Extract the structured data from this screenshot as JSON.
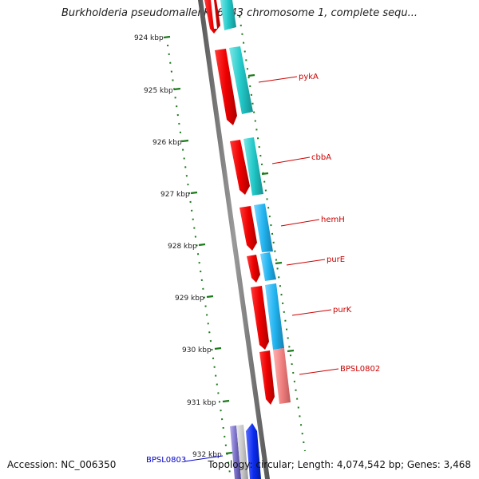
{
  "title": "Burkholderia pseudomallei K96243 chromosome 1, complete sequ...",
  "footer": {
    "accession": "Accession: NC_006350",
    "summary": "Topology: circular; Length: 4,074,542 bp; Genes: 3,468"
  },
  "ticks": [
    {
      "label": "924 kbp"
    },
    {
      "label": "925 kbp"
    },
    {
      "label": "926 kbp"
    },
    {
      "label": "927 kbp"
    },
    {
      "label": "928 kbp"
    },
    {
      "label": "929 kbp"
    },
    {
      "label": "930 kbp"
    },
    {
      "label": "931 kbp"
    },
    {
      "label": "932 kbp"
    }
  ],
  "gene_labels": [
    {
      "label": "pykA",
      "color": "#cc0000"
    },
    {
      "label": "cbbA",
      "color": "#cc0000"
    },
    {
      "label": "hemH",
      "color": "#cc0000"
    },
    {
      "label": "purE",
      "color": "#cc0000"
    },
    {
      "label": "purK",
      "color": "#cc0000"
    },
    {
      "label": "BPSL0802",
      "color": "#cc0000"
    },
    {
      "label": "BPSL0803",
      "color": "#0000cc"
    }
  ],
  "colors": {
    "backbone": "#8a8a8a",
    "gene_forward": "#ee0000",
    "cds_cyan": "#22c8c8",
    "cds_sky": "#22b4f0",
    "cds_pink": "#f08080",
    "cds_blue": "#0a2cf0",
    "cds_purple": "#7a70c8",
    "tick_green": "#1a7a1a"
  }
}
